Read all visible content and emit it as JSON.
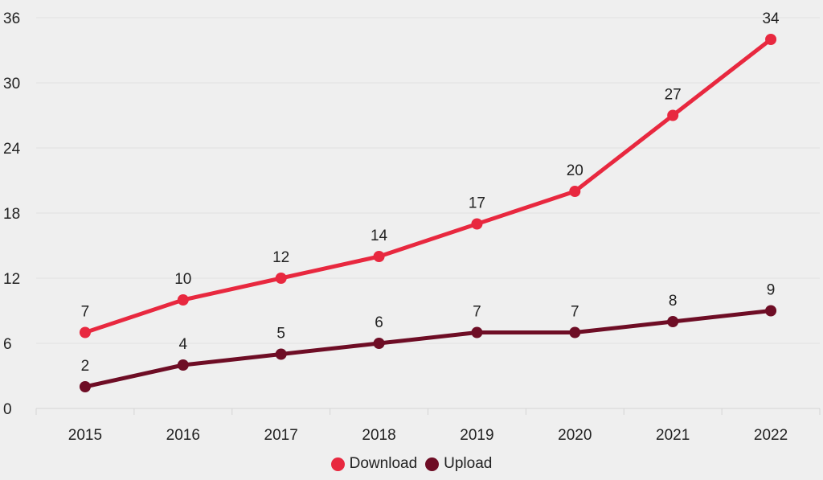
{
  "chart_data": {
    "type": "line",
    "title": "",
    "xlabel": "",
    "ylabel": "",
    "categories": [
      "2015",
      "2016",
      "2017",
      "2018",
      "2019",
      "2020",
      "2021",
      "2022"
    ],
    "ylim": [
      0,
      36
    ],
    "yticks": [
      0,
      6,
      12,
      18,
      24,
      30,
      36
    ],
    "grid": true,
    "legend_position": "bottom",
    "series": [
      {
        "name": "Download",
        "values": [
          7,
          10,
          12,
          14,
          17,
          20,
          27,
          34
        ],
        "color": "#e8283f"
      },
      {
        "name": "Upload",
        "values": [
          2,
          4,
          5,
          6,
          7,
          7,
          8,
          9
        ],
        "color": "#6e0d25"
      }
    ]
  }
}
